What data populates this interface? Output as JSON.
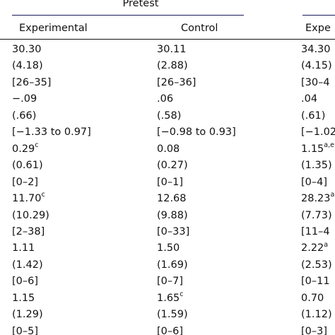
{
  "header": {
    "group_pretest": "Pretest",
    "col_experimental": "Experimental",
    "col_control": "Control",
    "col_experimental_partial": "Expe"
  },
  "rows": [
    {
      "c1": "30.30",
      "c1_sup": "",
      "c2": "30.11",
      "c2_sup": "",
      "c3": "34.30",
      "c3_sup": ""
    },
    {
      "c1": "(4.18)",
      "c1_sup": "",
      "c2": "(2.88)",
      "c2_sup": "",
      "c3": "(4.15)",
      "c3_sup": ""
    },
    {
      "c1": "[26–35]",
      "c1_sup": "",
      "c2": "[26–36]",
      "c2_sup": "",
      "c3": "[30–4",
      "c3_sup": ""
    },
    {
      "c1": "−.09",
      "c1_sup": "",
      "c2": ".06",
      "c2_sup": "",
      "c3": ".04",
      "c3_sup": ""
    },
    {
      "c1": "(.66)",
      "c1_sup": "",
      "c2": "(.58)",
      "c2_sup": "",
      "c3": "(.61)",
      "c3_sup": ""
    },
    {
      "c1": "[−1.33 to 0.97]",
      "c1_sup": "",
      "c2": "[−0.98 to 0.93]",
      "c2_sup": "",
      "c3": "[−1.02",
      "c3_sup": ""
    },
    {
      "c1": "0.29",
      "c1_sup": "c",
      "c2": "0.08",
      "c2_sup": "",
      "c3": "1.15",
      "c3_sup": "a,e"
    },
    {
      "c1": "(0.61)",
      "c1_sup": "",
      "c2": "(0.27)",
      "c2_sup": "",
      "c3": "(1.35)",
      "c3_sup": ""
    },
    {
      "c1": "[0–2]",
      "c1_sup": "",
      "c2": "[0–1]",
      "c2_sup": "",
      "c3": "[0–4]",
      "c3_sup": ""
    },
    {
      "c1": "11.70",
      "c1_sup": "c",
      "c2": "12.68",
      "c2_sup": "",
      "c3": "28.23",
      "c3_sup": "a"
    },
    {
      "c1": "(10.29)",
      "c1_sup": "",
      "c2": "(9.88)",
      "c2_sup": "",
      "c3": "(7.73)",
      "c3_sup": ""
    },
    {
      "c1": "[2–38]",
      "c1_sup": "",
      "c2": "[0–33]",
      "c2_sup": "",
      "c3": "[11–4",
      "c3_sup": ""
    },
    {
      "c1": "1.11",
      "c1_sup": "",
      "c2": "1.50",
      "c2_sup": "",
      "c3": "2.22",
      "c3_sup": "a"
    },
    {
      "c1": "(1.42)",
      "c1_sup": "",
      "c2": "(1.69)",
      "c2_sup": "",
      "c3": "(2.53)",
      "c3_sup": ""
    },
    {
      "c1": "[0–6]",
      "c1_sup": "",
      "c2": "[0–7]",
      "c2_sup": "",
      "c3": "[0–11",
      "c3_sup": ""
    },
    {
      "c1": "1.15",
      "c1_sup": "",
      "c2": "1.65",
      "c2_sup": "c",
      "c3": "0.70",
      "c3_sup": ""
    },
    {
      "c1": "(1.29)",
      "c1_sup": "",
      "c2": "(1.59)",
      "c2_sup": "",
      "c3": "(1.12)",
      "c3_sup": ""
    },
    {
      "c1": "[0–5]",
      "c1_sup": "",
      "c2": "[0–6]",
      "c2_sup": "",
      "c3": "[0–3]",
      "c3_sup": ""
    }
  ]
}
